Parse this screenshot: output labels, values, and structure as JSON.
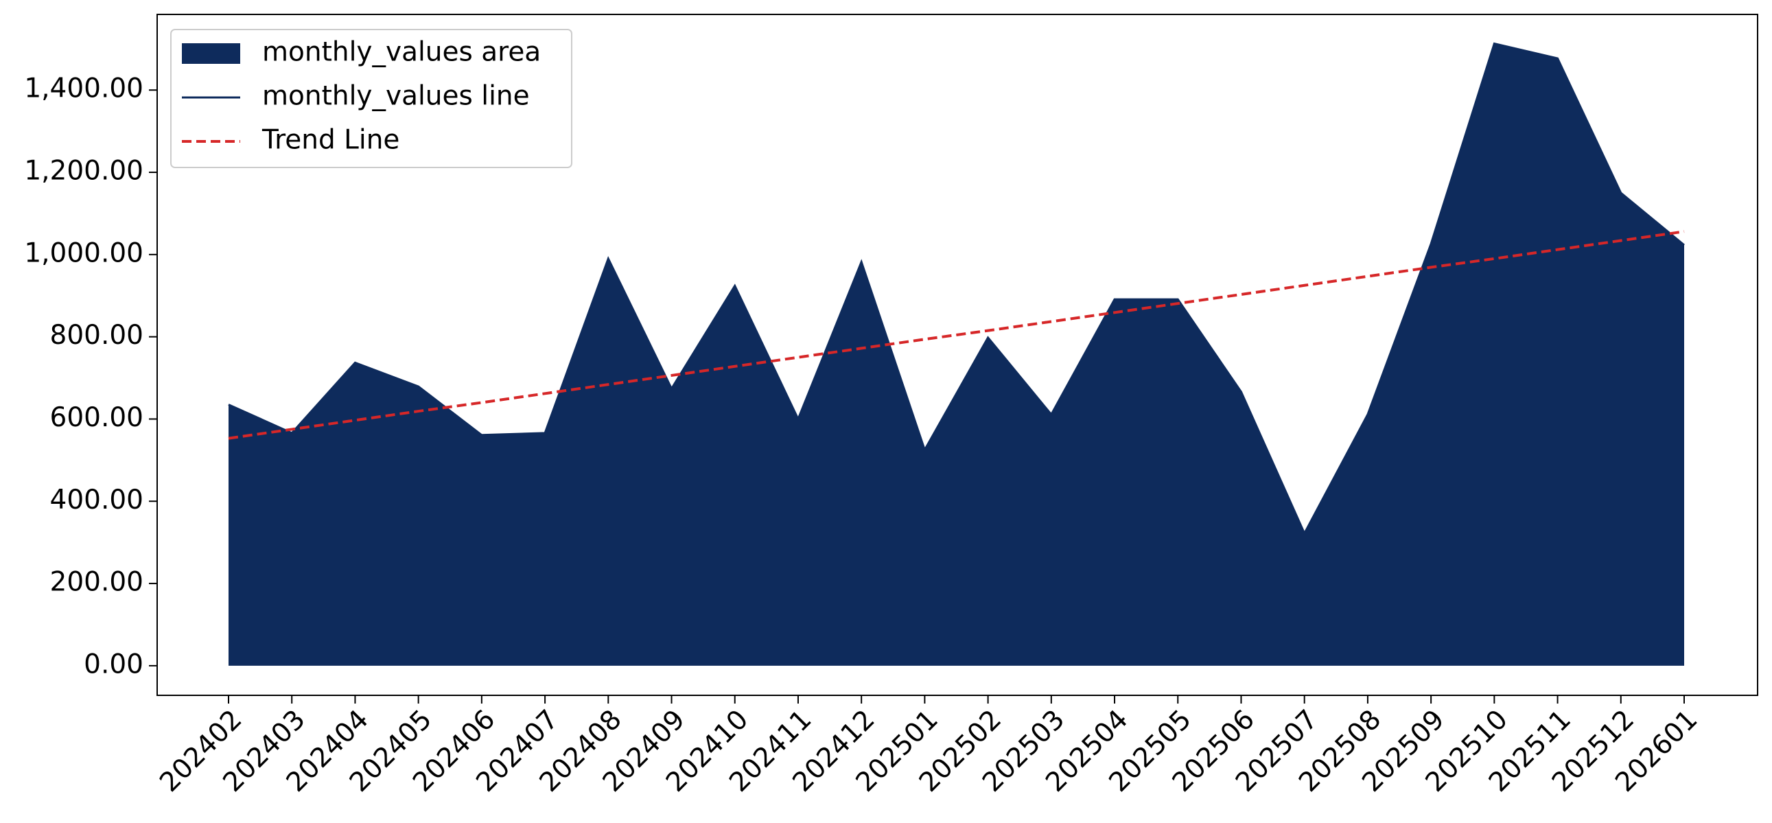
{
  "chart_data": {
    "type": "area",
    "categories": [
      "202402",
      "202403",
      "202404",
      "202405",
      "202406",
      "202407",
      "202408",
      "202409",
      "202410",
      "202411",
      "202412",
      "202501",
      "202502",
      "202503",
      "202504",
      "202505",
      "202506",
      "202507",
      "202508",
      "202509",
      "202510",
      "202511",
      "202512",
      "202601"
    ],
    "series": [
      {
        "name": "monthly_values area",
        "color": "#0e2b5c",
        "style": "area",
        "values": [
          635,
          566,
          737,
          679,
          561,
          566,
          990,
          674,
          924,
          600,
          982,
          525,
          798,
          611,
          891,
          891,
          666,
          322,
          611,
          1026,
          1513,
          1477,
          1150,
          1023
        ]
      },
      {
        "name": "monthly_values line",
        "color": "#0e2b5c",
        "style": "line",
        "values": [
          635,
          566,
          737,
          679,
          561,
          566,
          990,
          674,
          924,
          600,
          982,
          525,
          798,
          611,
          891,
          891,
          666,
          322,
          611,
          1026,
          1513,
          1477,
          1150,
          1023
        ]
      },
      {
        "name": "Trend Line",
        "color": "#d62728",
        "style": "dashed",
        "values": [
          553,
          575,
          597,
          619,
          640,
          662,
          684,
          706,
          728,
          750,
          772,
          794,
          815,
          837,
          859,
          881,
          903,
          925,
          947,
          969,
          990,
          1012,
          1034,
          1056
        ]
      }
    ],
    "ylim": [
      -72,
      1584
    ],
    "yticks": [
      {
        "value": 0,
        "label": "0.00"
      },
      {
        "value": 200,
        "label": "200.00"
      },
      {
        "value": 400,
        "label": "400.00"
      },
      {
        "value": 600,
        "label": "600.00"
      },
      {
        "value": 800,
        "label": "800.00"
      },
      {
        "value": 1000,
        "label": "1,000.00"
      },
      {
        "value": 1200,
        "label": "1,200.00"
      },
      {
        "value": 1400,
        "label": "1,400.00"
      }
    ],
    "legend": "upper left",
    "grid": false
  }
}
